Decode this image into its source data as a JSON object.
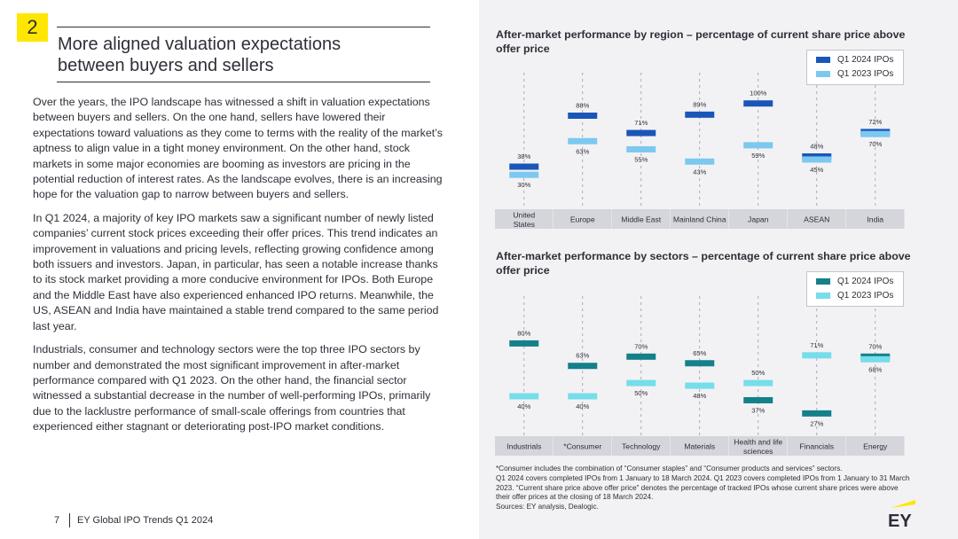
{
  "section_number": "2",
  "title_lines": [
    "More aligned valuation expectations",
    "between buyers and sellers"
  ],
  "paragraphs": [
    "Over the years, the IPO landscape has witnessed a shift in valuation expectations between buyers and sellers. On the one hand, sellers have lowered their expectations toward valuations as they come to terms with the reality of the market’s aptness to align value in a tight money environment. On the other hand, stock markets in some major economies are booming as investors are pricing in the potential reduction of interest rates. As the landscape evolves, there is an increasing hope for the valuation gap to narrow between buyers and sellers.",
    "In Q1 2024, a majority of key IPO markets saw a significant number of newly listed companies’ current stock prices exceeding their offer prices. This trend indicates an improvement in valuations and pricing levels, reflecting growing confidence among both issuers and investors. Japan, in particular, has seen a notable increase thanks to its stock market providing a more conducive environment for IPOs. Both Europe and the Middle East have also experienced enhanced IPO returns. Meanwhile, the US, ASEAN and India have maintained a stable trend compared to the same period last year.",
    "Industrials, consumer and technology sectors were the top three IPO sectors by number and demonstrated the most significant improvement in after-market performance compared with Q1 2023. On the other hand, the financial sector witnessed a substantial decrease in the number of well-performing IPOs, primarily due to the lacklustre performance of small-scale offerings from countries that experienced either stagnant or deteriorating post-IPO market conditions."
  ],
  "footer": {
    "page": "7",
    "title": "EY Global IPO Trends Q1 2024"
  },
  "logo": {
    "text": "EY",
    "accent": "#ffe600"
  },
  "colors": {
    "region_2024": "#1a56b8",
    "region_2023": "#7cc8f0",
    "sector_2024": "#14808a",
    "sector_2023": "#76ddea",
    "category_bar": "#d5d5dc",
    "guide": "#9a9aa6"
  },
  "chart_data": [
    {
      "type": "dot",
      "title": "After-market performance by region – percentage of current share price above offer price",
      "categories": [
        "United States",
        "Europe",
        "Middle East",
        "Mainland China",
        "Japan",
        "ASEAN",
        "India"
      ],
      "series": [
        {
          "name": "Q1 2024 IPOs",
          "values": [
            38,
            88,
            71,
            89,
            100,
            48,
            72
          ],
          "labels": [
            "38%",
            "88%",
            "71%",
            "89%",
            "100%",
            "48%",
            "72%"
          ]
        },
        {
          "name": "Q1 2023 IPOs",
          "values": [
            30,
            63,
            55,
            43,
            59,
            45,
            70
          ],
          "labels": [
            "30%",
            "63%",
            "55%",
            "43%",
            "59%",
            "45%",
            "70%"
          ]
        }
      ],
      "legend": "top-right"
    },
    {
      "type": "dot",
      "title": "After-market performance by sectors – percentage of current share price above offer price",
      "categories": [
        "Industrials",
        "*Consumer",
        "Technology",
        "Materials",
        "Health and life sciences",
        "Financials",
        "Energy"
      ],
      "series": [
        {
          "name": "Q1 2024 IPOs",
          "values": [
            80,
            63,
            70,
            65,
            37,
            27,
            70
          ],
          "labels": [
            "80%",
            "63%",
            "70%",
            "65%",
            "37%",
            "27%",
            "70%"
          ]
        },
        {
          "name": "Q1 2023 IPOs",
          "values": [
            40,
            40,
            50,
            48,
            50,
            71,
            68
          ],
          "labels": [
            "40%",
            "40%",
            "50%",
            "48%",
            "50%",
            "71%",
            "68%"
          ]
        }
      ],
      "legend": "top-right"
    }
  ],
  "notes": [
    "*Consumer includes the combination of “Consumer staples” and “Consumer products and services” sectors.",
    "Q1 2024 covers completed IPOs from 1 January to 18 March 2024. Q1 2023 covers completed IPOs from 1 January to 31 March 2023. “Current share price above offer price” denotes the percentage of tracked IPOs whose current share prices were above their offer prices at the closing of 18 March 2024.",
    "Sources: EY analysis, Dealogic."
  ]
}
